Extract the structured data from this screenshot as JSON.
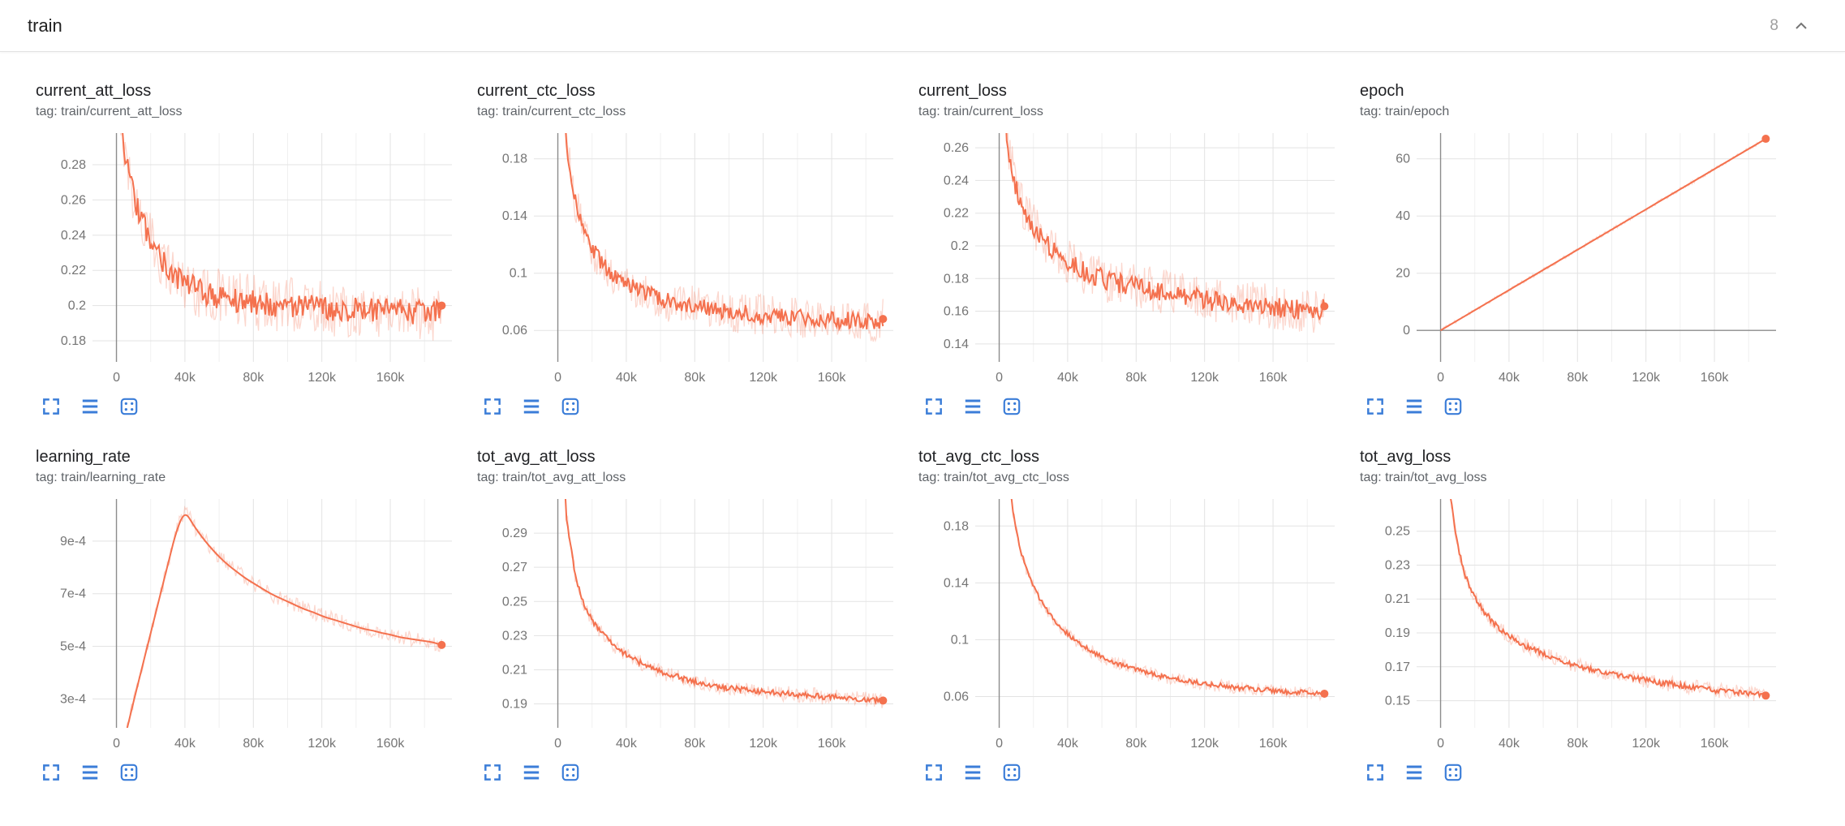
{
  "header": {
    "title": "train",
    "count": "8"
  },
  "colors": {
    "series": "#f4714e",
    "series_faint_opacity": 0.28,
    "grid": "#e3e3e3",
    "grid_minor": "#f0f0f0",
    "axis": "#8c8c8c",
    "tick_text": "#757575",
    "icon_blue": "#3b7dd8",
    "header_icon_gray": "#757575"
  },
  "icons": {
    "expand": "expand-chart",
    "log_scale": "toggle-y-axis-log-scale",
    "fit_domain": "fit-domain-to-data",
    "collapse": "collapse-section-chevron-up"
  },
  "x_axis": {
    "lim": [
      -14000,
      196000
    ],
    "tick_values": [
      0,
      40000,
      80000,
      120000,
      160000
    ],
    "tick_labels": [
      "0",
      "40k",
      "80k",
      "120k",
      "160k"
    ],
    "minor_tick_values": [
      20000,
      60000,
      100000,
      140000,
      180000
    ]
  },
  "chart_data": [
    {
      "type": "line",
      "title": "current_att_loss",
      "tag": "tag: train/current_att_loss",
      "ylim": [
        0.168,
        0.298
      ],
      "y_tick_values": [
        0.18,
        0.2,
        0.22,
        0.24,
        0.26,
        0.28
      ],
      "y_tick_labels": [
        "0.18",
        "0.2",
        "0.22",
        "0.24",
        "0.26",
        "0.28"
      ],
      "x_start": 0,
      "x_step": 5000,
      "values": [
        0.34,
        0.285,
        0.262,
        0.247,
        0.237,
        0.229,
        0.222,
        0.217,
        0.213,
        0.21,
        0.208,
        0.206,
        0.205,
        0.204,
        0.203,
        0.202,
        0.202,
        0.201,
        0.201,
        0.2,
        0.2,
        0.2,
        0.199,
        0.199,
        0.199,
        0.198,
        0.198,
        0.198,
        0.198,
        0.197,
        0.197,
        0.197,
        0.197,
        0.197,
        0.196,
        0.196,
        0.196,
        0.196,
        0.2
      ],
      "noise_smoothed": 0.007,
      "noise_raw": 0.016,
      "end_marker": [
        190000,
        0.2
      ]
    },
    {
      "type": "line",
      "title": "current_ctc_loss",
      "tag": "tag: train/current_ctc_loss",
      "ylim": [
        0.038,
        0.198
      ],
      "y_tick_values": [
        0.06,
        0.1,
        0.14,
        0.18
      ],
      "y_tick_labels": [
        "0.06",
        "0.1",
        "0.14",
        "0.18"
      ],
      "x_start": 0,
      "x_step": 5000,
      "values": [
        0.31,
        0.19,
        0.15,
        0.13,
        0.117,
        0.108,
        0.101,
        0.096,
        0.092,
        0.089,
        0.086,
        0.084,
        0.082,
        0.08,
        0.079,
        0.078,
        0.077,
        0.076,
        0.075,
        0.074,
        0.073,
        0.072,
        0.072,
        0.071,
        0.071,
        0.07,
        0.07,
        0.069,
        0.069,
        0.068,
        0.068,
        0.068,
        0.067,
        0.067,
        0.067,
        0.066,
        0.066,
        0.066,
        0.068
      ],
      "noise_smoothed": 0.006,
      "noise_raw": 0.014,
      "end_marker": [
        190000,
        0.068
      ]
    },
    {
      "type": "line",
      "title": "current_loss",
      "tag": "tag: train/current_loss",
      "ylim": [
        0.129,
        0.269
      ],
      "y_tick_values": [
        0.14,
        0.16,
        0.18,
        0.2,
        0.22,
        0.24,
        0.26
      ],
      "y_tick_labels": [
        "0.14",
        "0.16",
        "0.18",
        "0.2",
        "0.22",
        "0.24",
        "0.26"
      ],
      "x_start": 0,
      "x_step": 5000,
      "values": [
        0.33,
        0.26,
        0.235,
        0.222,
        0.212,
        0.205,
        0.199,
        0.194,
        0.19,
        0.187,
        0.184,
        0.182,
        0.18,
        0.178,
        0.177,
        0.176,
        0.175,
        0.174,
        0.173,
        0.172,
        0.171,
        0.17,
        0.169,
        0.168,
        0.167,
        0.166,
        0.166,
        0.165,
        0.165,
        0.164,
        0.164,
        0.163,
        0.163,
        0.162,
        0.162,
        0.161,
        0.161,
        0.16,
        0.163
      ],
      "noise_smoothed": 0.006,
      "noise_raw": 0.014,
      "end_marker": [
        190000,
        0.163
      ]
    },
    {
      "type": "line",
      "title": "epoch",
      "tag": "tag: train/epoch",
      "ylim": [
        -11,
        69
      ],
      "y_tick_values": [
        0,
        20,
        40,
        60
      ],
      "y_tick_labels": [
        "0",
        "20",
        "40",
        "60"
      ],
      "x_start": 0,
      "x_step": 95000,
      "values": [
        0,
        33.5,
        67
      ],
      "noise_smoothed": 0,
      "noise_raw": 0.6,
      "end_marker": [
        190000,
        67
      ]
    },
    {
      "type": "line",
      "title": "learning_rate",
      "tag": "tag: train/learning_rate",
      "y_unit": "1e-4",
      "ylim": [
        1.9,
        10.6
      ],
      "y_tick_values": [
        3,
        5,
        7,
        9
      ],
      "y_tick_labels": [
        "3e-4",
        "5e-4",
        "7e-4",
        "9e-4"
      ],
      "x_start": 0,
      "x_step": 5000,
      "values": [
        0.2,
        1.55,
        2.9,
        4.2,
        5.5,
        6.8,
        8.1,
        9.4,
        10.15,
        9.6,
        9.15,
        8.75,
        8.4,
        8.1,
        7.85,
        7.6,
        7.4,
        7.2,
        7.0,
        6.85,
        6.7,
        6.55,
        6.4,
        6.3,
        6.15,
        6.05,
        5.95,
        5.85,
        5.75,
        5.65,
        5.6,
        5.5,
        5.45,
        5.35,
        5.3,
        5.25,
        5.2,
        5.15,
        5.05
      ],
      "noise_smoothed": 0,
      "noise_raw": 0.3,
      "end_marker": [
        190000,
        5.05
      ]
    },
    {
      "type": "line",
      "title": "tot_avg_att_loss",
      "tag": "tag: train/tot_avg_att_loss",
      "ylim": [
        0.176,
        0.31
      ],
      "y_tick_values": [
        0.19,
        0.21,
        0.23,
        0.25,
        0.27,
        0.29
      ],
      "y_tick_labels": [
        "0.19",
        "0.21",
        "0.23",
        "0.25",
        "0.27",
        "0.29"
      ],
      "x_start": 0,
      "x_step": 5000,
      "values": [
        0.4,
        0.3,
        0.266,
        0.249,
        0.239,
        0.232,
        0.227,
        0.222,
        0.219,
        0.216,
        0.213,
        0.211,
        0.209,
        0.207,
        0.206,
        0.204,
        0.203,
        0.202,
        0.201,
        0.2,
        0.199,
        0.199,
        0.198,
        0.198,
        0.197,
        0.197,
        0.196,
        0.196,
        0.195,
        0.195,
        0.195,
        0.194,
        0.194,
        0.194,
        0.193,
        0.193,
        0.193,
        0.192,
        0.192
      ],
      "noise_smoothed": 0.0016,
      "noise_raw": 0.0045,
      "end_marker": [
        190000,
        0.192
      ]
    },
    {
      "type": "line",
      "title": "tot_avg_ctc_loss",
      "tag": "tag: train/tot_avg_ctc_loss",
      "ylim": [
        0.038,
        0.199
      ],
      "y_tick_values": [
        0.06,
        0.1,
        0.14,
        0.18
      ],
      "y_tick_labels": [
        "0.06",
        "0.1",
        "0.14",
        "0.18"
      ],
      "x_start": 0,
      "x_step": 5000,
      "values": [
        0.31,
        0.215,
        0.176,
        0.152,
        0.137,
        0.126,
        0.117,
        0.11,
        0.104,
        0.099,
        0.095,
        0.091,
        0.088,
        0.085,
        0.083,
        0.081,
        0.079,
        0.077,
        0.076,
        0.074,
        0.073,
        0.072,
        0.071,
        0.07,
        0.069,
        0.068,
        0.068,
        0.067,
        0.066,
        0.066,
        0.065,
        0.065,
        0.064,
        0.064,
        0.063,
        0.063,
        0.063,
        0.062,
        0.062
      ],
      "noise_smoothed": 0.0016,
      "noise_raw": 0.0045,
      "end_marker": [
        190000,
        0.062
      ]
    },
    {
      "type": "line",
      "title": "tot_avg_loss",
      "tag": "tag: train/tot_avg_loss",
      "ylim": [
        0.134,
        0.269
      ],
      "y_tick_values": [
        0.15,
        0.17,
        0.19,
        0.21,
        0.23,
        0.25
      ],
      "y_tick_labels": [
        "0.15",
        "0.17",
        "0.19",
        "0.21",
        "0.23",
        "0.25"
      ],
      "x_start": 0,
      "x_step": 5000,
      "values": [
        0.36,
        0.275,
        0.241,
        0.222,
        0.211,
        0.203,
        0.197,
        0.192,
        0.188,
        0.185,
        0.182,
        0.18,
        0.178,
        0.176,
        0.174,
        0.172,
        0.171,
        0.169,
        0.168,
        0.167,
        0.166,
        0.165,
        0.164,
        0.163,
        0.162,
        0.161,
        0.16,
        0.16,
        0.159,
        0.158,
        0.158,
        0.157,
        0.156,
        0.156,
        0.155,
        0.155,
        0.154,
        0.154,
        0.153
      ],
      "noise_smoothed": 0.0016,
      "noise_raw": 0.0045,
      "end_marker": [
        190000,
        0.153
      ]
    }
  ]
}
